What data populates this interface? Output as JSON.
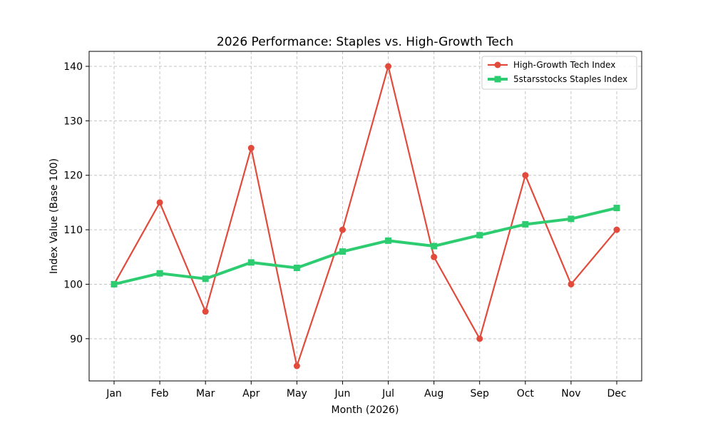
{
  "chart_data": {
    "type": "line",
    "title": "2026 Performance: Staples vs. High-Growth Tech",
    "xlabel": "Month (2026)",
    "ylabel": "Index Value (Base 100)",
    "categories": [
      "Jan",
      "Feb",
      "Mar",
      "Apr",
      "May",
      "Jun",
      "Jul",
      "Aug",
      "Sep",
      "Oct",
      "Nov",
      "Dec"
    ],
    "yticks": [
      90,
      100,
      110,
      120,
      130,
      140
    ],
    "ylim": [
      82.25,
      142.75
    ],
    "grid": true,
    "legend_position": "top-right",
    "series": [
      {
        "name": "High-Growth Tech Index",
        "values": [
          100,
          115,
          95,
          125,
          85,
          110,
          140,
          105,
          90,
          120,
          100,
          110
        ],
        "color": "#e24a3b",
        "marker": "circle"
      },
      {
        "name": "5starsstocks Staples Index",
        "values": [
          100,
          102,
          101,
          104,
          103,
          106,
          108,
          107,
          109,
          111,
          112,
          114
        ],
        "color": "#2ecc71",
        "marker": "square"
      }
    ]
  }
}
